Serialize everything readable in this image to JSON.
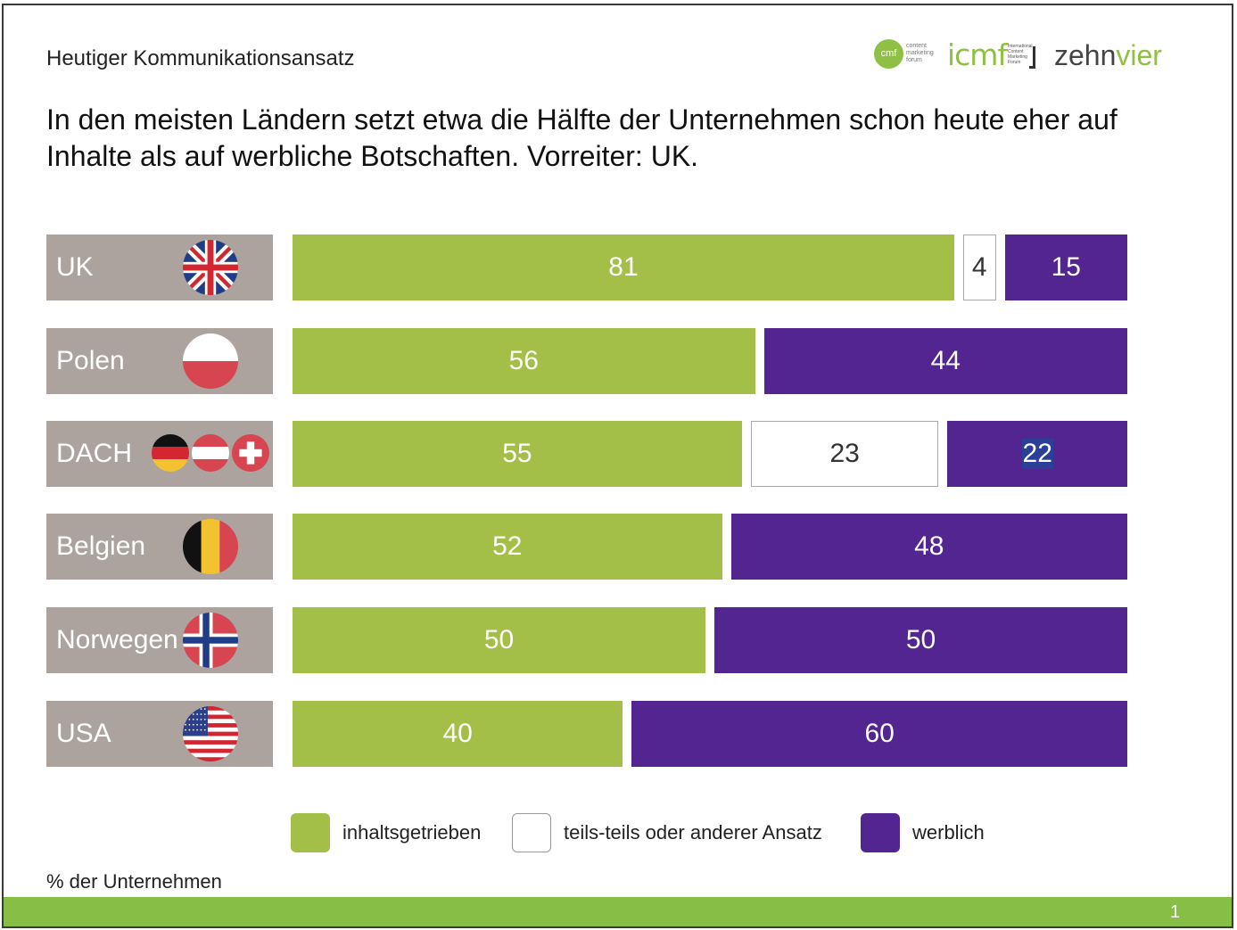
{
  "header": {
    "subtitle": "Heutiger Kommunikationsansatz",
    "headline": "In den meisten Ländern setzt etwa die Hälfte der Unternehmen schon heute eher auf Inhalte als auf werbliche Botschaften. Vorreiter: UK."
  },
  "logos": {
    "cmf": "cmf",
    "cmf_text": "content marketing forum",
    "icmf": "icmf",
    "icmf_text": "International Content Marketing Forum",
    "zehn": "zehn",
    "vier": "vier"
  },
  "colors": {
    "inhalt": "#a3bf48",
    "teils": "#ffffff",
    "werblich": "#532591",
    "label_bg": "#aca39e",
    "footer": "#86be46"
  },
  "chart_data": {
    "type": "bar",
    "orientation": "horizontal",
    "stacked": true,
    "categories": [
      "UK",
      "Polen",
      "DACH",
      "Belgien",
      "Norwegen",
      "USA"
    ],
    "flags": [
      [
        "uk-flag"
      ],
      [
        "poland-flag"
      ],
      [
        "germany-flag",
        "austria-flag",
        "switzerland-flag"
      ],
      [
        "belgium-flag"
      ],
      [
        "norway-flag"
      ],
      [
        "usa-flag"
      ]
    ],
    "series": [
      {
        "name": "inhaltsgetrieben",
        "values": [
          81,
          56,
          55,
          52,
          50,
          40
        ]
      },
      {
        "name": "teils-teils oder anderer Ansatz",
        "values": [
          4,
          0,
          23,
          0,
          0,
          0
        ]
      },
      {
        "name": "werblich",
        "values": [
          15,
          44,
          22,
          48,
          50,
          60
        ]
      }
    ],
    "data_labels": [
      [
        "81",
        "4",
        "15"
      ],
      [
        "56",
        "",
        "44"
      ],
      [
        "55",
        "23",
        "22"
      ],
      [
        "52",
        "",
        "48"
      ],
      [
        "50",
        "",
        "50"
      ],
      [
        "40",
        "",
        "60"
      ]
    ],
    "xlim": [
      0,
      100
    ],
    "legend_position": "bottom",
    "grid": false
  },
  "footnote": "% der Unternehmen",
  "page_number": "1"
}
